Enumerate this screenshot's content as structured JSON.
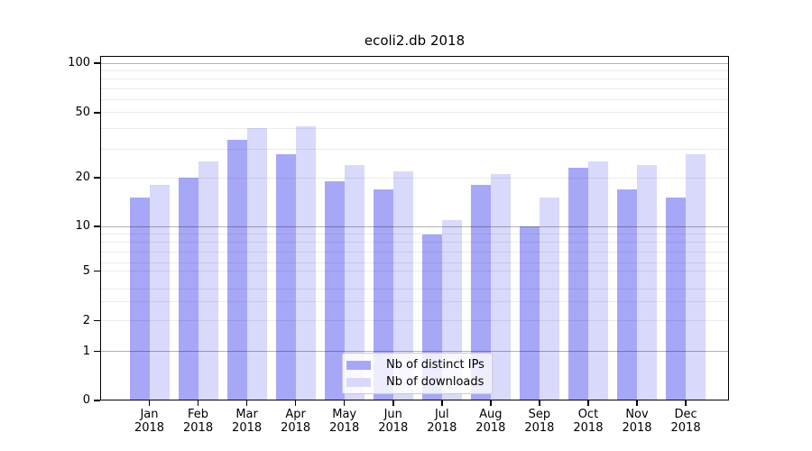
{
  "title": "ecoli2.db 2018",
  "chart_data": {
    "type": "bar",
    "title": "ecoli2.db 2018",
    "categories": [
      "Jan 2018",
      "Feb 2018",
      "Mar 2018",
      "Apr 2018",
      "May 2018",
      "Jun 2018",
      "Jul 2018",
      "Aug 2018",
      "Sep 2018",
      "Oct 2018",
      "Nov 2018",
      "Dec 2018"
    ],
    "x_tick_months": [
      "Jan",
      "Feb",
      "Mar",
      "Apr",
      "May",
      "Jun",
      "Jul",
      "Aug",
      "Sep",
      "Oct",
      "Nov",
      "Dec"
    ],
    "x_tick_year": "2018",
    "series": [
      {
        "name": "Nb of distinct IPs",
        "color": "#a7a7f8",
        "values": [
          15,
          20,
          34,
          28,
          19,
          17,
          9,
          18,
          10,
          23,
          17,
          15
        ]
      },
      {
        "name": "Nb of downloads",
        "color": "#d9d9fb",
        "values": [
          18,
          25,
          40,
          41,
          24,
          22,
          11,
          21,
          15,
          25,
          24,
          28
        ]
      }
    ],
    "y_axis": {
      "scale": "log-like",
      "tick_labels": [
        "100",
        "50",
        "20",
        "10",
        "5",
        "2",
        "1",
        "0"
      ],
      "tick_values": [
        100,
        50,
        20,
        10,
        5,
        2,
        1,
        0
      ],
      "ymin": 0,
      "ymax": 110
    },
    "legend": {
      "position": "inside-bottom-center"
    },
    "grid": true,
    "colors": {
      "background": "#ffffff",
      "major_grid": "#b3b3b3",
      "minor_grid": "#ececec",
      "axis": "#000000"
    }
  }
}
